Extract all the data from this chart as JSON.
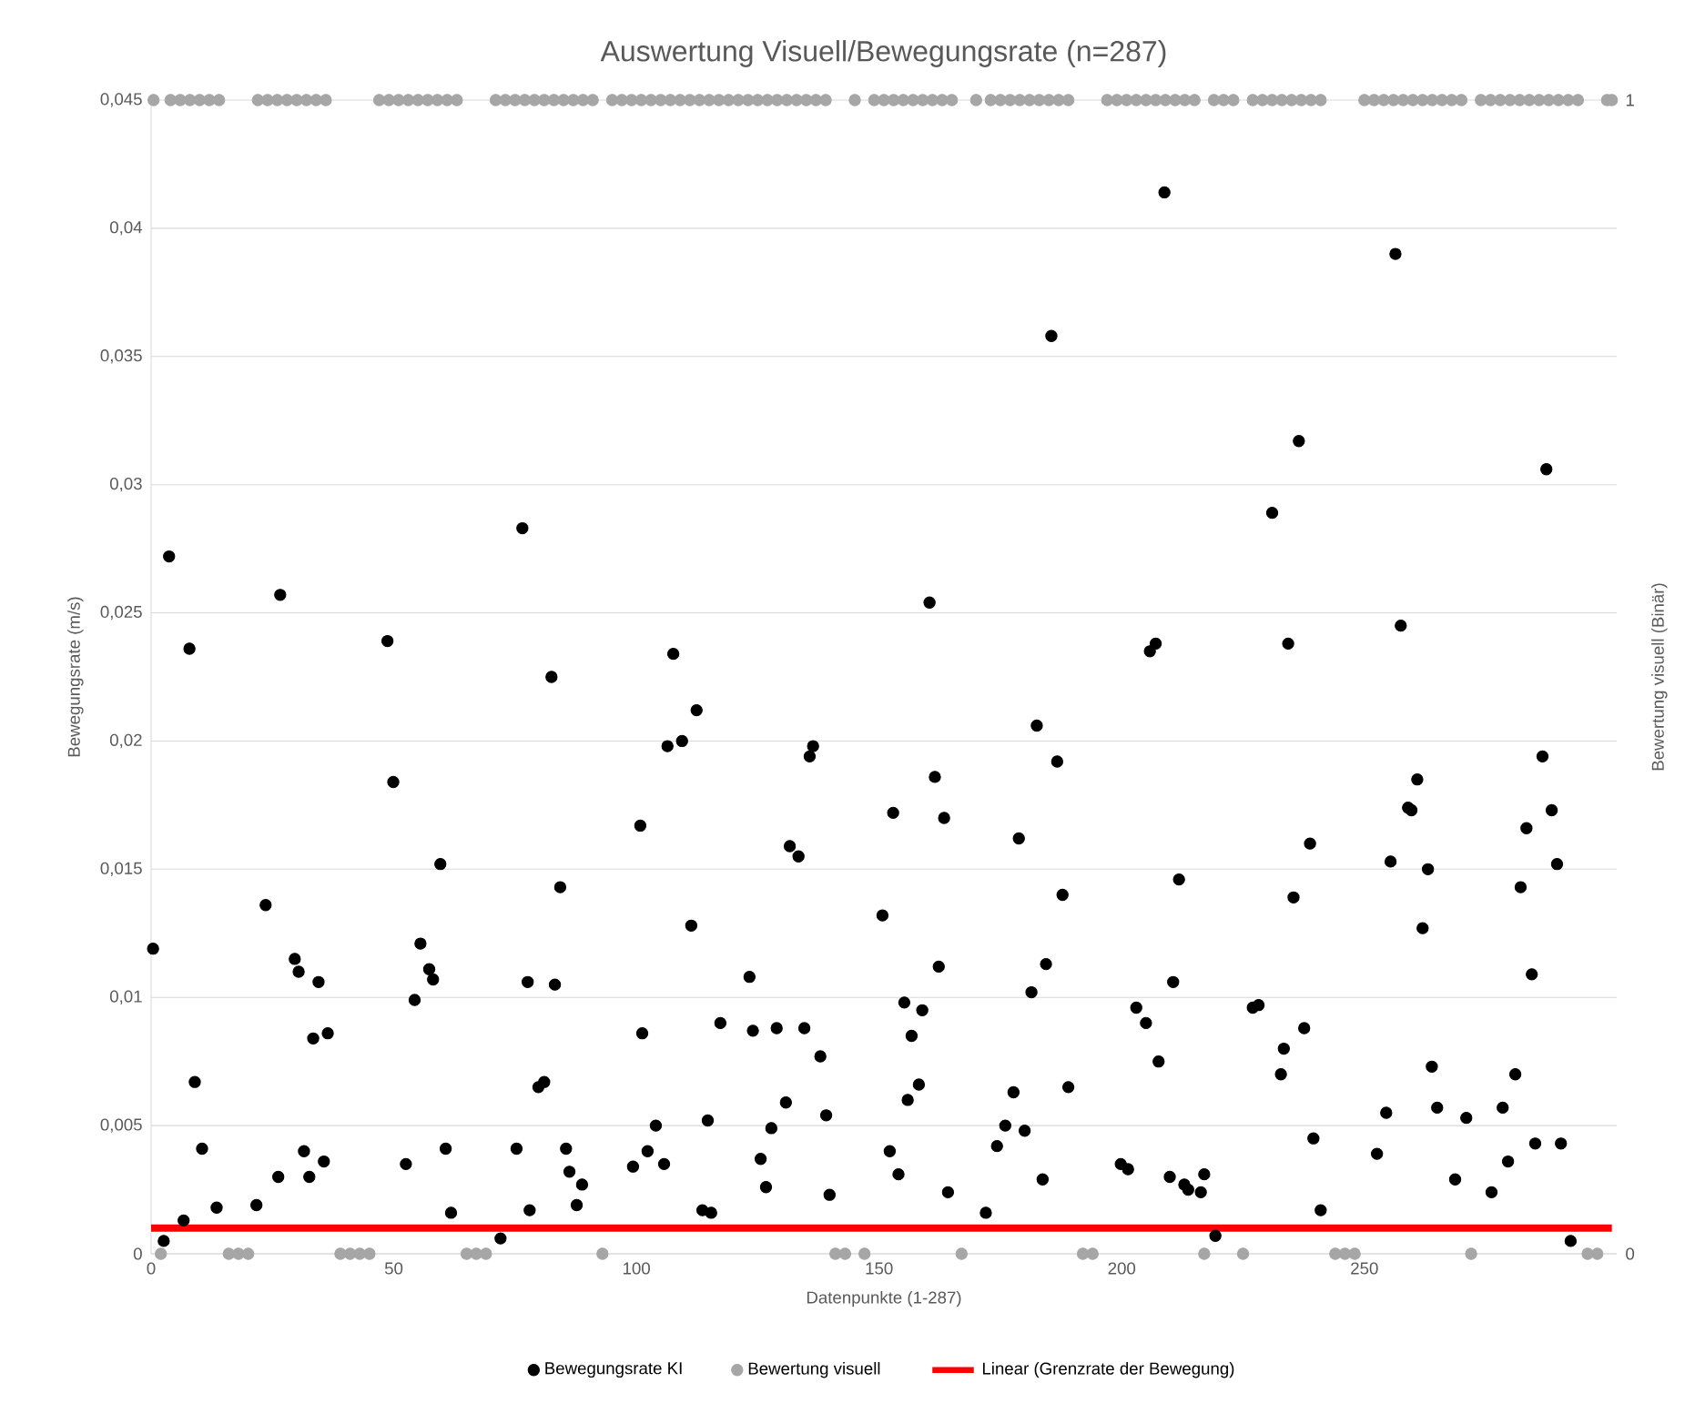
{
  "chart_data": {
    "type": "scatter",
    "title": "Auswertung Visuell/Bewegungsrate (n=287)",
    "xlabel": "Datenpunkte (1-287)",
    "ylabel": "Bewegungsrate (m/s)",
    "y2label": "Bewertung visuell (Binär)",
    "xlim": [
      0,
      302
    ],
    "xticks": [
      0,
      50,
      100,
      150,
      200,
      250
    ],
    "ylim": [
      0,
      0.045
    ],
    "yticks": [
      0,
      {
        "value": 0.005,
        "label": "0,005"
      },
      {
        "value": 0.01,
        "label": "0,01"
      },
      {
        "value": 0.015,
        "label": "0,015"
      },
      {
        "value": 0.02,
        "label": "0,02"
      },
      {
        "value": 0.025,
        "label": "0,025"
      },
      {
        "value": 0.03,
        "label": "0,03"
      },
      {
        "value": 0.035,
        "label": "0,035"
      },
      {
        "value": 0.04,
        "label": "0,04"
      },
      {
        "value": 0.045,
        "label": "0,045"
      }
    ],
    "y2lim": [
      0,
      1
    ],
    "y2ticks": [
      0,
      1
    ],
    "grid": "y",
    "legend": "bottom",
    "series": [
      {
        "name": "Bewegungsrate KI",
        "color": "#000000",
        "marker": "circle",
        "x": [
          0.4,
          2.6,
          3.7,
          6.7,
          7.9,
          9,
          10.5,
          13.5,
          21.7,
          23.6,
          26.2,
          26.6,
          29.6,
          30.4,
          31.5,
          32.6,
          33.4,
          34.5,
          35.6,
          36.4,
          48.7,
          49.9,
          52.5,
          54.3,
          55.5,
          57.3,
          58.1,
          59.6,
          60.7,
          61.8,
          72,
          75.3,
          76.5,
          77.6,
          78,
          79.8,
          81,
          82.5,
          83.2,
          84.3,
          85.5,
          86.2,
          87.7,
          88.8,
          99.3,
          100.8,
          101.2,
          102.3,
          104,
          105.7,
          106.4,
          107.6,
          109.4,
          111.3,
          112.4,
          113.6,
          114.7,
          115.4,
          117.3,
          123.3,
          124,
          125.6,
          126.7,
          127.8,
          128.9,
          130.8,
          131.6,
          133.4,
          134.6,
          135.7,
          136.4,
          137.9,
          139.1,
          139.8,
          150.7,
          152.2,
          152.9,
          154,
          155.2,
          155.9,
          156.7,
          158.2,
          158.9,
          160.4,
          161.5,
          162.3,
          163.4,
          164.2,
          172,
          174.3,
          176,
          177.7,
          178.8,
          180,
          181.4,
          182.5,
          183.7,
          184.4,
          185.5,
          186.7,
          187.8,
          189,
          199.8,
          201.3,
          203,
          205,
          205.8,
          207,
          207.6,
          208.8,
          209.9,
          210.6,
          211.8,
          212.9,
          213.7,
          216.3,
          217,
          219.3,
          227,
          228.2,
          231,
          232.8,
          233.4,
          234.3,
          235.4,
          236.5,
          237.6,
          238.8,
          239.5,
          241,
          252.6,
          254.5,
          255.4,
          256.4,
          257.5,
          259,
          259.7,
          260.9,
          262,
          263.1,
          263.9,
          265,
          268.7,
          271,
          276.2,
          278.5,
          279.6,
          281.1,
          282.2,
          283.4,
          284.5,
          285.2,
          286.7,
          287.5,
          288.6,
          289.7,
          290.5,
          292.5
        ],
        "values": [
          0.0119,
          0.0005,
          0.0272,
          0.0013,
          0.0236,
          0.0067,
          0.0041,
          0.0018,
          0.0019,
          0.0136,
          0.003,
          0.0257,
          0.0115,
          0.011,
          0.004,
          0.003,
          0.0084,
          0.0106,
          0.0036,
          0.0086,
          0.0239,
          0.0184,
          0.0035,
          0.0099,
          0.0121,
          0.0111,
          0.0107,
          0.0152,
          0.0041,
          0.0016,
          0.0006,
          0.0041,
          0.0283,
          0.0106,
          0.0017,
          0.0065,
          0.0067,
          0.0225,
          0.0105,
          0.0143,
          0.0041,
          0.0032,
          0.0019,
          0.0027,
          0.0034,
          0.0167,
          0.0086,
          0.004,
          0.005,
          0.0035,
          0.0198,
          0.0234,
          0.02,
          0.0128,
          0.0212,
          0.0017,
          0.0052,
          0.0016,
          0.009,
          0.0108,
          0.0087,
          0.0037,
          0.0026,
          0.0049,
          0.0088,
          0.0059,
          0.0159,
          0.0155,
          0.0088,
          0.0194,
          0.0198,
          0.0077,
          0.0054,
          0.0023,
          0.0132,
          0.004,
          0.0172,
          0.0031,
          0.0098,
          0.006,
          0.0085,
          0.0066,
          0.0095,
          0.0254,
          0.0186,
          0.0112,
          0.017,
          0.0024,
          0.0016,
          0.0042,
          0.005,
          0.0063,
          0.0162,
          0.0048,
          0.0102,
          0.0206,
          0.0029,
          0.0113,
          0.0358,
          0.0192,
          0.014,
          0.0065,
          0.0035,
          0.0033,
          0.0096,
          0.009,
          0.0235,
          0.0238,
          0.0075,
          0.0414,
          0.003,
          0.0106,
          0.0146,
          0.0027,
          0.0025,
          0.0024,
          0.0031,
          0.0007,
          0.0096,
          0.0097,
          0.0289,
          0.007,
          0.008,
          0.0238,
          0.0139,
          0.0317,
          0.0088,
          0.016,
          0.0045,
          0.0017,
          0.0039,
          0.0055,
          0.0153,
          0.039,
          0.0245,
          0.0174,
          0.0173,
          0.0185,
          0.0127,
          0.015,
          0.0073,
          0.0057,
          0.0029,
          0.0053,
          0.0024,
          0.0057,
          0.0036,
          0.007,
          0.0143,
          0.0166,
          0.0109,
          0.0043,
          0.0194,
          0.0306,
          0.0173,
          0.0152,
          0.0043,
          0.0005
        ]
      },
      {
        "name": "Bewertung visuell",
        "color": "#a6a6a6",
        "marker": "circle",
        "axis": "y2",
        "x": [
          0.5,
          2,
          4,
          6,
          8,
          10,
          12,
          14,
          16,
          18,
          20,
          22,
          24,
          26,
          28,
          30,
          32,
          34,
          36,
          39,
          41,
          43,
          45,
          47,
          49,
          51,
          53,
          55,
          57,
          59,
          61,
          63,
          65,
          67,
          69,
          71,
          73,
          75,
          77,
          79,
          81,
          83,
          85,
          87,
          89,
          91,
          93,
          95,
          97,
          99,
          101,
          103,
          105,
          107,
          109,
          111,
          113,
          115,
          117,
          119,
          121,
          123,
          125,
          127,
          129,
          131,
          133,
          135,
          137,
          139,
          141,
          143,
          145,
          147,
          149,
          151,
          153,
          155,
          157,
          159,
          161,
          163,
          165,
          167,
          170,
          173,
          175,
          177,
          179,
          181,
          183,
          185,
          187,
          189,
          192,
          194,
          197,
          199,
          201,
          203,
          205,
          207,
          209,
          211,
          213,
          215,
          217,
          219,
          221,
          223,
          225,
          227,
          229,
          231,
          233,
          235,
          237,
          239,
          241,
          244,
          246,
          248,
          250,
          252,
          254,
          256,
          258,
          260,
          262,
          264,
          266,
          268,
          270,
          272,
          274,
          276,
          278,
          280,
          282,
          284,
          286,
          288,
          290,
          292,
          294,
          296,
          298,
          300,
          301
        ],
        "values": [
          1,
          0,
          1,
          1,
          1,
          1,
          1,
          1,
          0,
          0,
          0,
          1,
          1,
          1,
          1,
          1,
          1,
          1,
          1,
          0,
          0,
          0,
          0,
          1,
          1,
          1,
          1,
          1,
          1,
          1,
          1,
          1,
          0,
          0,
          0,
          1,
          1,
          1,
          1,
          1,
          1,
          1,
          1,
          1,
          1,
          1,
          0,
          1,
          1,
          1,
          1,
          1,
          1,
          1,
          1,
          1,
          1,
          1,
          1,
          1,
          1,
          1,
          1,
          1,
          1,
          1,
          1,
          1,
          1,
          1,
          0,
          0,
          1,
          0,
          1,
          1,
          1,
          1,
          1,
          1,
          1,
          1,
          1,
          0,
          1,
          1,
          1,
          1,
          1,
          1,
          1,
          1,
          1,
          1,
          0,
          0,
          1,
          1,
          1,
          1,
          1,
          1,
          1,
          1,
          1,
          1,
          0,
          1,
          1,
          1,
          0,
          1,
          1,
          1,
          1,
          1,
          1,
          1,
          1,
          0,
          0,
          0,
          1,
          1,
          1,
          1,
          1,
          1,
          1,
          1,
          1,
          1,
          1,
          0,
          1,
          1,
          1,
          1,
          1,
          1,
          1,
          1,
          1,
          1,
          1,
          0,
          0,
          1,
          1
        ]
      },
      {
        "name": "Linear (Grenzrate der Bewegung)",
        "color": "#ff0000",
        "type": "line",
        "marker": "none",
        "x": [
          0,
          301
        ],
        "values": [
          0.001,
          0.001
        ]
      }
    ]
  }
}
